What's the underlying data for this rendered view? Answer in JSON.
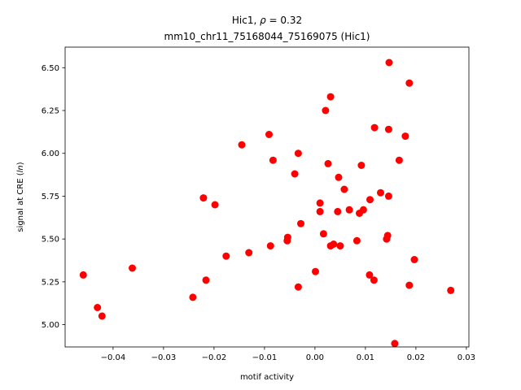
{
  "chart_data": {
    "type": "scatter",
    "title_line1_name": "Hic1, ",
    "title_line1_symbol": "ρ",
    "title_line1_eq": " = 0.32",
    "title_line2": "mm10_chr11_75168044_75169075 (Hic1)",
    "xlabel": "motif activity",
    "ylabel_prefix": "signal at CRE (",
    "ylabel_italic": "ln",
    "ylabel_suffix": ")",
    "xlim": [
      -0.0495,
      0.0305
    ],
    "ylim": [
      4.87,
      6.62
    ],
    "xticks": [
      -0.04,
      -0.03,
      -0.02,
      -0.01,
      0.0,
      0.01,
      0.02,
      0.03
    ],
    "xtick_labels": [
      "−0.04",
      "−0.03",
      "−0.02",
      "−0.01",
      "0.00",
      "0.01",
      "0.02",
      "0.03"
    ],
    "yticks": [
      5.0,
      5.25,
      5.5,
      5.75,
      6.0,
      6.25,
      6.5
    ],
    "ytick_labels": [
      "5.00",
      "5.25",
      "5.50",
      "5.75",
      "6.00",
      "6.25",
      "6.50"
    ],
    "grid": false,
    "marker_color": "#ff0000",
    "points": [
      {
        "x": -0.0459,
        "y": 5.29
      },
      {
        "x": -0.0431,
        "y": 5.1
      },
      {
        "x": -0.0422,
        "y": 5.05
      },
      {
        "x": -0.0362,
        "y": 5.33
      },
      {
        "x": -0.0242,
        "y": 5.16
      },
      {
        "x": -0.0221,
        "y": 5.74
      },
      {
        "x": -0.0216,
        "y": 5.26
      },
      {
        "x": -0.0198,
        "y": 5.7
      },
      {
        "x": -0.0176,
        "y": 5.4
      },
      {
        "x": -0.0145,
        "y": 6.05
      },
      {
        "x": -0.0131,
        "y": 5.42
      },
      {
        "x": -0.0091,
        "y": 6.11
      },
      {
        "x": -0.0088,
        "y": 5.46
      },
      {
        "x": -0.0083,
        "y": 5.96
      },
      {
        "x": -0.0055,
        "y": 5.49
      },
      {
        "x": -0.0054,
        "y": 5.51
      },
      {
        "x": -0.004,
        "y": 5.88
      },
      {
        "x": -0.0033,
        "y": 6.0
      },
      {
        "x": -0.0033,
        "y": 5.22
      },
      {
        "x": -0.0028,
        "y": 5.59
      },
      {
        "x": 0.0001,
        "y": 5.31
      },
      {
        "x": 0.001,
        "y": 5.71
      },
      {
        "x": 0.001,
        "y": 5.66
      },
      {
        "x": 0.0017,
        "y": 5.53
      },
      {
        "x": 0.0021,
        "y": 6.25
      },
      {
        "x": 0.0026,
        "y": 5.94
      },
      {
        "x": 0.0031,
        "y": 6.33
      },
      {
        "x": 0.0031,
        "y": 5.46
      },
      {
        "x": 0.0037,
        "y": 5.47
      },
      {
        "x": 0.0045,
        "y": 5.66
      },
      {
        "x": 0.0047,
        "y": 5.86
      },
      {
        "x": 0.005,
        "y": 5.46
      },
      {
        "x": 0.0058,
        "y": 5.79
      },
      {
        "x": 0.0068,
        "y": 5.67
      },
      {
        "x": 0.0083,
        "y": 5.49
      },
      {
        "x": 0.0088,
        "y": 5.65
      },
      {
        "x": 0.0092,
        "y": 5.93
      },
      {
        "x": 0.0096,
        "y": 5.67
      },
      {
        "x": 0.0108,
        "y": 5.29
      },
      {
        "x": 0.0109,
        "y": 5.73
      },
      {
        "x": 0.0117,
        "y": 5.26
      },
      {
        "x": 0.0118,
        "y": 6.15
      },
      {
        "x": 0.013,
        "y": 5.77
      },
      {
        "x": 0.0142,
        "y": 5.5
      },
      {
        "x": 0.0144,
        "y": 5.52
      },
      {
        "x": 0.0146,
        "y": 6.14
      },
      {
        "x": 0.0146,
        "y": 5.75
      },
      {
        "x": 0.0147,
        "y": 6.53
      },
      {
        "x": 0.0158,
        "y": 4.89
      },
      {
        "x": 0.0167,
        "y": 5.96
      },
      {
        "x": 0.0179,
        "y": 6.1
      },
      {
        "x": 0.0187,
        "y": 6.41
      },
      {
        "x": 0.0187,
        "y": 5.23
      },
      {
        "x": 0.0197,
        "y": 5.38
      },
      {
        "x": 0.0269,
        "y": 5.2
      }
    ]
  }
}
